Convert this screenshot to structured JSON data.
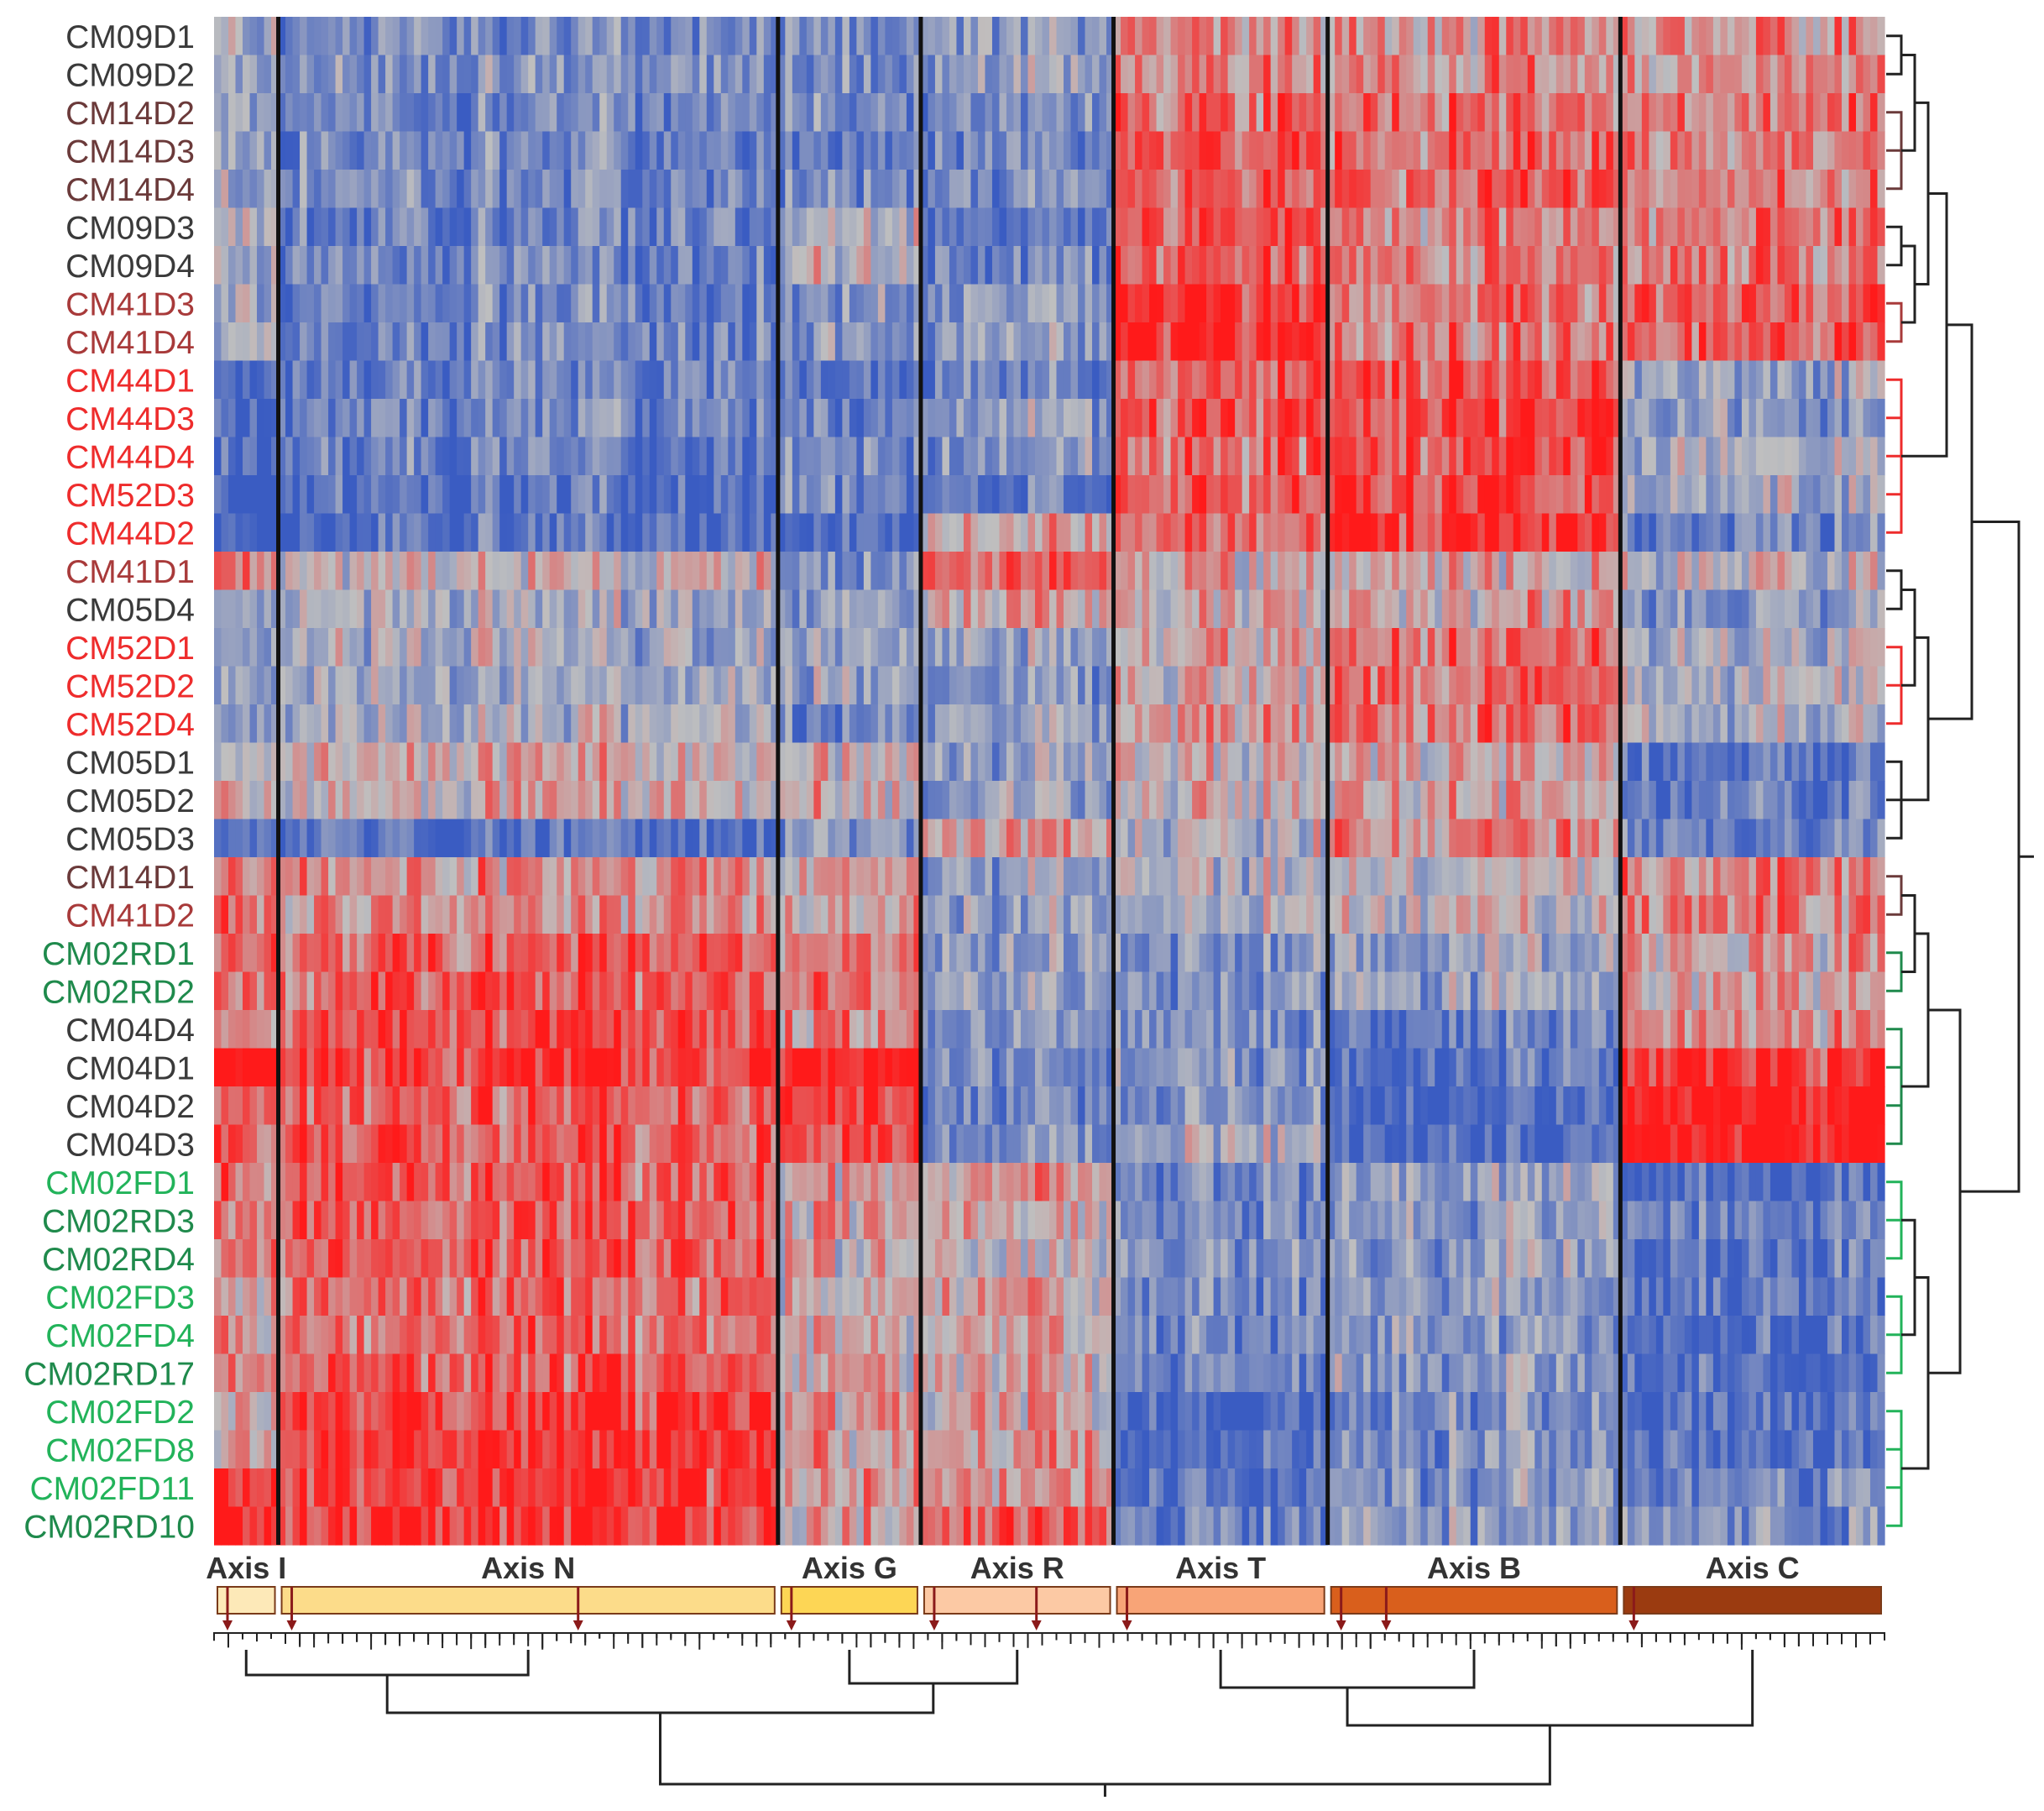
{
  "chart_data": {
    "type": "heatmap",
    "title": "",
    "color_scale": {
      "low": "#3a5cc2",
      "mid": "#bfbfbf",
      "high": "#ff1a1a"
    },
    "rows": [
      {
        "label": "CM09D1",
        "color": "#3a3a3a"
      },
      {
        "label": "CM09D2",
        "color": "#3a3a3a"
      },
      {
        "label": "CM14D2",
        "color": "#6b3a3a"
      },
      {
        "label": "CM14D3",
        "color": "#6b3a3a"
      },
      {
        "label": "CM14D4",
        "color": "#6b3a3a"
      },
      {
        "label": "CM09D3",
        "color": "#3a3a3a"
      },
      {
        "label": "CM09D4",
        "color": "#3a3a3a"
      },
      {
        "label": "CM41D3",
        "color": "#a83a3a"
      },
      {
        "label": "CM41D4",
        "color": "#a83a3a"
      },
      {
        "label": "CM44D1",
        "color": "#ee2c2c"
      },
      {
        "label": "CM44D3",
        "color": "#ee2c2c"
      },
      {
        "label": "CM44D4",
        "color": "#ee2c2c"
      },
      {
        "label": "CM52D3",
        "color": "#ee2c2c"
      },
      {
        "label": "CM44D2",
        "color": "#ee2c2c"
      },
      {
        "label": "CM41D1",
        "color": "#a83a3a"
      },
      {
        "label": "CM05D4",
        "color": "#3a3a3a"
      },
      {
        "label": "CM52D1",
        "color": "#ee2c2c"
      },
      {
        "label": "CM52D2",
        "color": "#ee2c2c"
      },
      {
        "label": "CM52D4",
        "color": "#ee2c2c"
      },
      {
        "label": "CM05D1",
        "color": "#3a3a3a"
      },
      {
        "label": "CM05D2",
        "color": "#3a3a3a"
      },
      {
        "label": "CM05D3",
        "color": "#3a3a3a"
      },
      {
        "label": "CM14D1",
        "color": "#6b3a3a"
      },
      {
        "label": "CM41D2",
        "color": "#a83a3a"
      },
      {
        "label": "CM02RD1",
        "color": "#1f8a4c"
      },
      {
        "label": "CM02RD2",
        "color": "#1f8a4c"
      },
      {
        "label": "CM04D4",
        "color": "#3a3a3a"
      },
      {
        "label": "CM04D1",
        "color": "#3a3a3a"
      },
      {
        "label": "CM04D2",
        "color": "#3a3a3a"
      },
      {
        "label": "CM04D3",
        "color": "#3a3a3a"
      },
      {
        "label": "CM02FD1",
        "color": "#22b35a"
      },
      {
        "label": "CM02RD3",
        "color": "#1f8a4c"
      },
      {
        "label": "CM02RD4",
        "color": "#1f8a4c"
      },
      {
        "label": "CM02FD3",
        "color": "#22b35a"
      },
      {
        "label": "CM02FD4",
        "color": "#22b35a"
      },
      {
        "label": "CM02RD17",
        "color": "#1f8a4c"
      },
      {
        "label": "CM02FD2",
        "color": "#22b35a"
      },
      {
        "label": "CM02FD8",
        "color": "#22b35a"
      },
      {
        "label": "CM02FD11",
        "color": "#22b35a"
      },
      {
        "label": "CM02RD10",
        "color": "#1f8a4c"
      }
    ],
    "column_groups": [
      {
        "label": "Axis I",
        "columns": 9,
        "color": "#fde9b8"
      },
      {
        "label": "Axis N",
        "columns": 70,
        "color": "#fcdc8a"
      },
      {
        "label": "Axis G",
        "columns": 20,
        "color": "#fdd655"
      },
      {
        "label": "Axis R",
        "columns": 27,
        "color": "#fcc9a4"
      },
      {
        "label": "Axis T",
        "columns": 30,
        "color": "#f8a477"
      },
      {
        "label": "Axis B",
        "columns": 41,
        "color": "#d95f1c"
      },
      {
        "label": "Axis C",
        "columns": 37,
        "color": "#9b3b10"
      }
    ],
    "block_means": [
      [
        -0.2,
        -0.5,
        -0.5,
        -0.3,
        0.3,
        0.3,
        0.3
      ],
      [
        -0.3,
        -0.5,
        -0.5,
        -0.3,
        0.3,
        0.3,
        0.3
      ],
      [
        -0.3,
        -0.6,
        -0.6,
        -0.5,
        0.5,
        0.5,
        0.4
      ],
      [
        -0.3,
        -0.6,
        -0.7,
        -0.5,
        0.6,
        0.5,
        0.4
      ],
      [
        -0.3,
        -0.6,
        -0.6,
        -0.5,
        0.5,
        0.5,
        0.4
      ],
      [
        -0.2,
        -0.6,
        -0.1,
        -0.6,
        0.6,
        0.4,
        0.4
      ],
      [
        -0.2,
        -0.6,
        -0.1,
        -0.6,
        0.6,
        0.4,
        0.4
      ],
      [
        -0.2,
        -0.6,
        -0.4,
        -0.4,
        0.9,
        0.4,
        0.6
      ],
      [
        -0.2,
        -0.6,
        -0.4,
        -0.4,
        0.9,
        0.4,
        0.6
      ],
      [
        -0.9,
        -0.6,
        -0.8,
        -0.6,
        0.6,
        0.7,
        -0.3
      ],
      [
        -0.9,
        -0.6,
        -0.6,
        -0.3,
        0.6,
        0.7,
        -0.4
      ],
      [
        -0.9,
        -0.6,
        -0.5,
        -0.4,
        0.5,
        0.7,
        -0.2
      ],
      [
        -1.0,
        -0.8,
        -0.5,
        -0.7,
        0.6,
        0.7,
        -0.2
      ],
      [
        -1.0,
        -0.8,
        -0.9,
        0.2,
        0.5,
        0.8,
        -0.6
      ],
      [
        0.4,
        0.0,
        -0.5,
        0.6,
        0.1,
        0.1,
        -0.1
      ],
      [
        -0.3,
        -0.2,
        -0.4,
        0.2,
        0.1,
        0.2,
        -0.4
      ],
      [
        -0.4,
        -0.2,
        -0.3,
        -0.3,
        0.1,
        0.5,
        -0.2
      ],
      [
        -0.4,
        -0.2,
        -0.3,
        -0.4,
        0.1,
        0.5,
        -0.2
      ],
      [
        -0.4,
        -0.2,
        -0.6,
        -0.3,
        0.2,
        0.5,
        -0.2
      ],
      [
        0.0,
        0.1,
        0.1,
        -0.3,
        0.0,
        0.1,
        -0.7
      ],
      [
        0.0,
        0.1,
        0.1,
        -0.3,
        0.0,
        0.1,
        -0.7
      ],
      [
        -0.8,
        -0.8,
        -0.4,
        0.3,
        -0.1,
        0.3,
        -0.6
      ],
      [
        0.4,
        0.3,
        0.2,
        -0.3,
        -0.2,
        0.0,
        0.4
      ],
      [
        0.4,
        0.3,
        0.2,
        -0.3,
        -0.2,
        0.0,
        0.4
      ],
      [
        0.5,
        0.6,
        0.4,
        -0.4,
        -0.5,
        -0.3,
        0.2
      ],
      [
        0.5,
        0.6,
        0.4,
        -0.4,
        -0.5,
        -0.3,
        0.2
      ],
      [
        0.2,
        0.7,
        0.3,
        -0.4,
        -0.5,
        -0.7,
        0.3
      ],
      [
        1.0,
        0.8,
        1.0,
        -0.5,
        -0.4,
        -0.8,
        0.8
      ],
      [
        0.6,
        0.6,
        0.8,
        -0.6,
        -0.5,
        -0.9,
        1.0
      ],
      [
        0.6,
        0.6,
        0.7,
        -0.5,
        -0.3,
        -0.9,
        1.0
      ],
      [
        0.5,
        0.6,
        0.2,
        0.3,
        -0.6,
        -0.4,
        -0.9
      ],
      [
        0.4,
        0.6,
        0.2,
        0.1,
        -0.5,
        -0.4,
        -0.6
      ],
      [
        0.4,
        0.6,
        0.1,
        0.0,
        -0.5,
        -0.4,
        -0.7
      ],
      [
        0.2,
        0.5,
        0.1,
        0.2,
        -0.6,
        -0.4,
        -0.8
      ],
      [
        0.2,
        0.5,
        0.1,
        0.2,
        -0.6,
        -0.4,
        -0.8
      ],
      [
        0.3,
        0.6,
        0.1,
        0.1,
        -0.6,
        -0.4,
        -0.8
      ],
      [
        0.1,
        0.8,
        0.2,
        0.2,
        -0.9,
        -0.5,
        -0.8
      ],
      [
        0.1,
        0.8,
        0.2,
        0.2,
        -0.9,
        -0.5,
        -0.8
      ],
      [
        0.9,
        0.8,
        0.2,
        0.3,
        -0.8,
        -0.4,
        -0.6
      ],
      [
        0.9,
        0.8,
        0.2,
        0.6,
        -0.7,
        -0.4,
        -0.5
      ]
    ],
    "legend": "none"
  }
}
